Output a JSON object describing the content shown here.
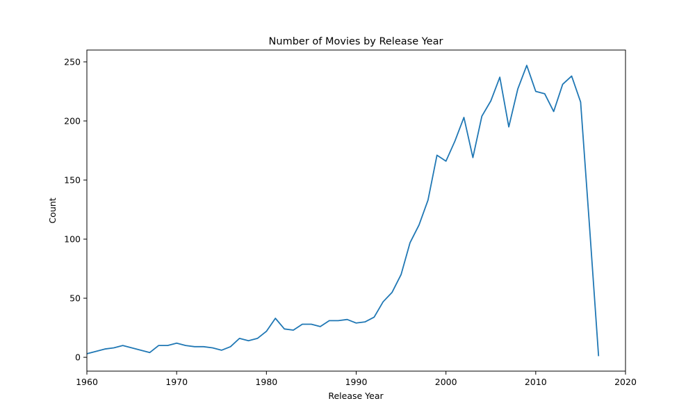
{
  "chart_data": {
    "type": "line",
    "title": "Number of Movies by Release Year",
    "xlabel": "Release Year",
    "ylabel": "Count",
    "xlim": [
      1960,
      2020
    ],
    "ylim": [
      -11.7,
      260
    ],
    "xticks": [
      1960,
      1970,
      1980,
      1990,
      2000,
      2010,
      2020
    ],
    "yticks": [
      0,
      50,
      100,
      150,
      200,
      250
    ],
    "grid": false,
    "series_color": "#1f77b4",
    "x": [
      1960,
      1961,
      1962,
      1963,
      1964,
      1965,
      1966,
      1967,
      1968,
      1969,
      1970,
      1971,
      1972,
      1973,
      1974,
      1975,
      1976,
      1977,
      1978,
      1979,
      1980,
      1981,
      1982,
      1983,
      1984,
      1985,
      1986,
      1987,
      1988,
      1989,
      1990,
      1991,
      1992,
      1993,
      1994,
      1995,
      1996,
      1997,
      1998,
      1999,
      2000,
      2001,
      2002,
      2003,
      2004,
      2005,
      2006,
      2007,
      2008,
      2009,
      2010,
      2011,
      2012,
      2013,
      2014,
      2015,
      2016,
      2017
    ],
    "series": [
      {
        "values": [
          3,
          5,
          7,
          8,
          10,
          8,
          6,
          4,
          10,
          10,
          12,
          10,
          9,
          9,
          8,
          6,
          9,
          16,
          14,
          16,
          22,
          33,
          24,
          23,
          28,
          28,
          26,
          31,
          31,
          32,
          29,
          30,
          34,
          47,
          55,
          70,
          97,
          112,
          133,
          171,
          166,
          183,
          203,
          169,
          204,
          217,
          237,
          195,
          227,
          247,
          225,
          223,
          208,
          231,
          238,
          216,
          110,
          1
        ]
      }
    ]
  }
}
